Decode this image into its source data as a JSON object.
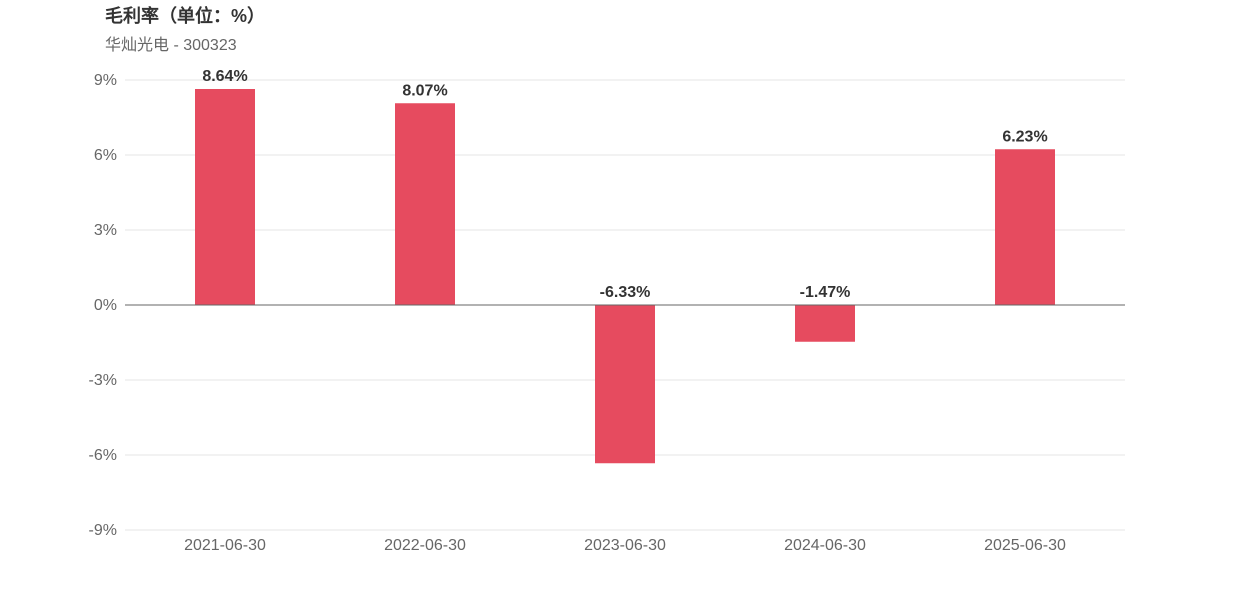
{
  "chart_data": {
    "type": "bar",
    "title": "毛利率（单位：%）",
    "subtitle": "华灿光电 - 300323",
    "categories": [
      "2021-06-30",
      "2022-06-30",
      "2023-06-30",
      "2024-06-30",
      "2025-06-30"
    ],
    "values": [
      8.64,
      8.07,
      -6.33,
      -1.47,
      6.23
    ],
    "data_labels": [
      "8.64%",
      "8.07%",
      "-6.33%",
      "-1.47%",
      "6.23%"
    ],
    "ylim": [
      -9,
      9
    ],
    "yticks": [
      9,
      6,
      3,
      0,
      -3,
      -6,
      -9
    ],
    "ytick_labels": [
      "9%",
      "6%",
      "3%",
      "0%",
      "-3%",
      "-6%",
      "-9%"
    ],
    "grid": true,
    "colors": {
      "bar": "#e64b5f",
      "grid": "#e6e6e6",
      "axis": "#666666"
    }
  }
}
